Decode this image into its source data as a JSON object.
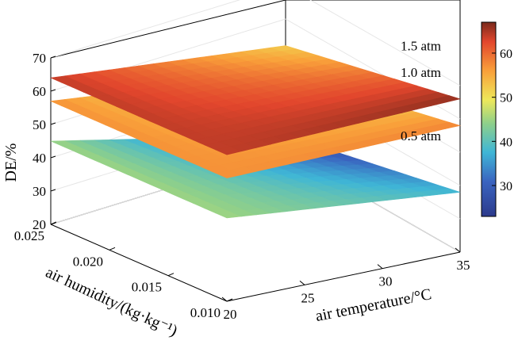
{
  "chart_data": {
    "type": "surface",
    "zlabel": "DE/%",
    "xlabel": "air temperature/°C",
    "ylabel": "air humidity/(kg·kg⁻¹)",
    "xlim": [
      20,
      35
    ],
    "ylim": [
      0.01,
      0.025
    ],
    "zlim": [
      20,
      70
    ],
    "xticks": [
      "20",
      "25",
      "30",
      "35"
    ],
    "yticks": [
      "0.010",
      "0.015",
      "0.020",
      "0.025"
    ],
    "zticks": [
      "20",
      "30",
      "40",
      "50",
      "60",
      "70"
    ],
    "colorbar": {
      "ticks": [
        "30",
        "40",
        "50",
        "60"
      ],
      "range": [
        23,
        67
      ],
      "colormap": "jet"
    },
    "series": [
      {
        "name": "1.5 atm",
        "corners": [
          {
            "air_temperature": 20,
            "air_humidity": 0.01,
            "DE": 64
          },
          {
            "air_temperature": 35,
            "air_humidity": 0.01,
            "DE": 66
          },
          {
            "air_temperature": 20,
            "air_humidity": 0.025,
            "DE": 64
          },
          {
            "air_temperature": 35,
            "air_humidity": 0.025,
            "DE": 52
          }
        ]
      },
      {
        "name": "1.0 atm",
        "corners": [
          {
            "air_temperature": 20,
            "air_humidity": 0.01,
            "DE": 57
          },
          {
            "air_temperature": 35,
            "air_humidity": 0.01,
            "DE": 58
          },
          {
            "air_temperature": 20,
            "air_humidity": 0.025,
            "DE": 57
          },
          {
            "air_temperature": 35,
            "air_humidity": 0.025,
            "DE": 44
          }
        ]
      },
      {
        "name": "0.5 atm",
        "corners": [
          {
            "air_temperature": 20,
            "air_humidity": 0.01,
            "DE": 45
          },
          {
            "air_temperature": 35,
            "air_humidity": 0.01,
            "DE": 38
          },
          {
            "air_temperature": 20,
            "air_humidity": 0.025,
            "DE": 45
          },
          {
            "air_temperature": 35,
            "air_humidity": 0.025,
            "DE": 25
          }
        ]
      }
    ]
  }
}
